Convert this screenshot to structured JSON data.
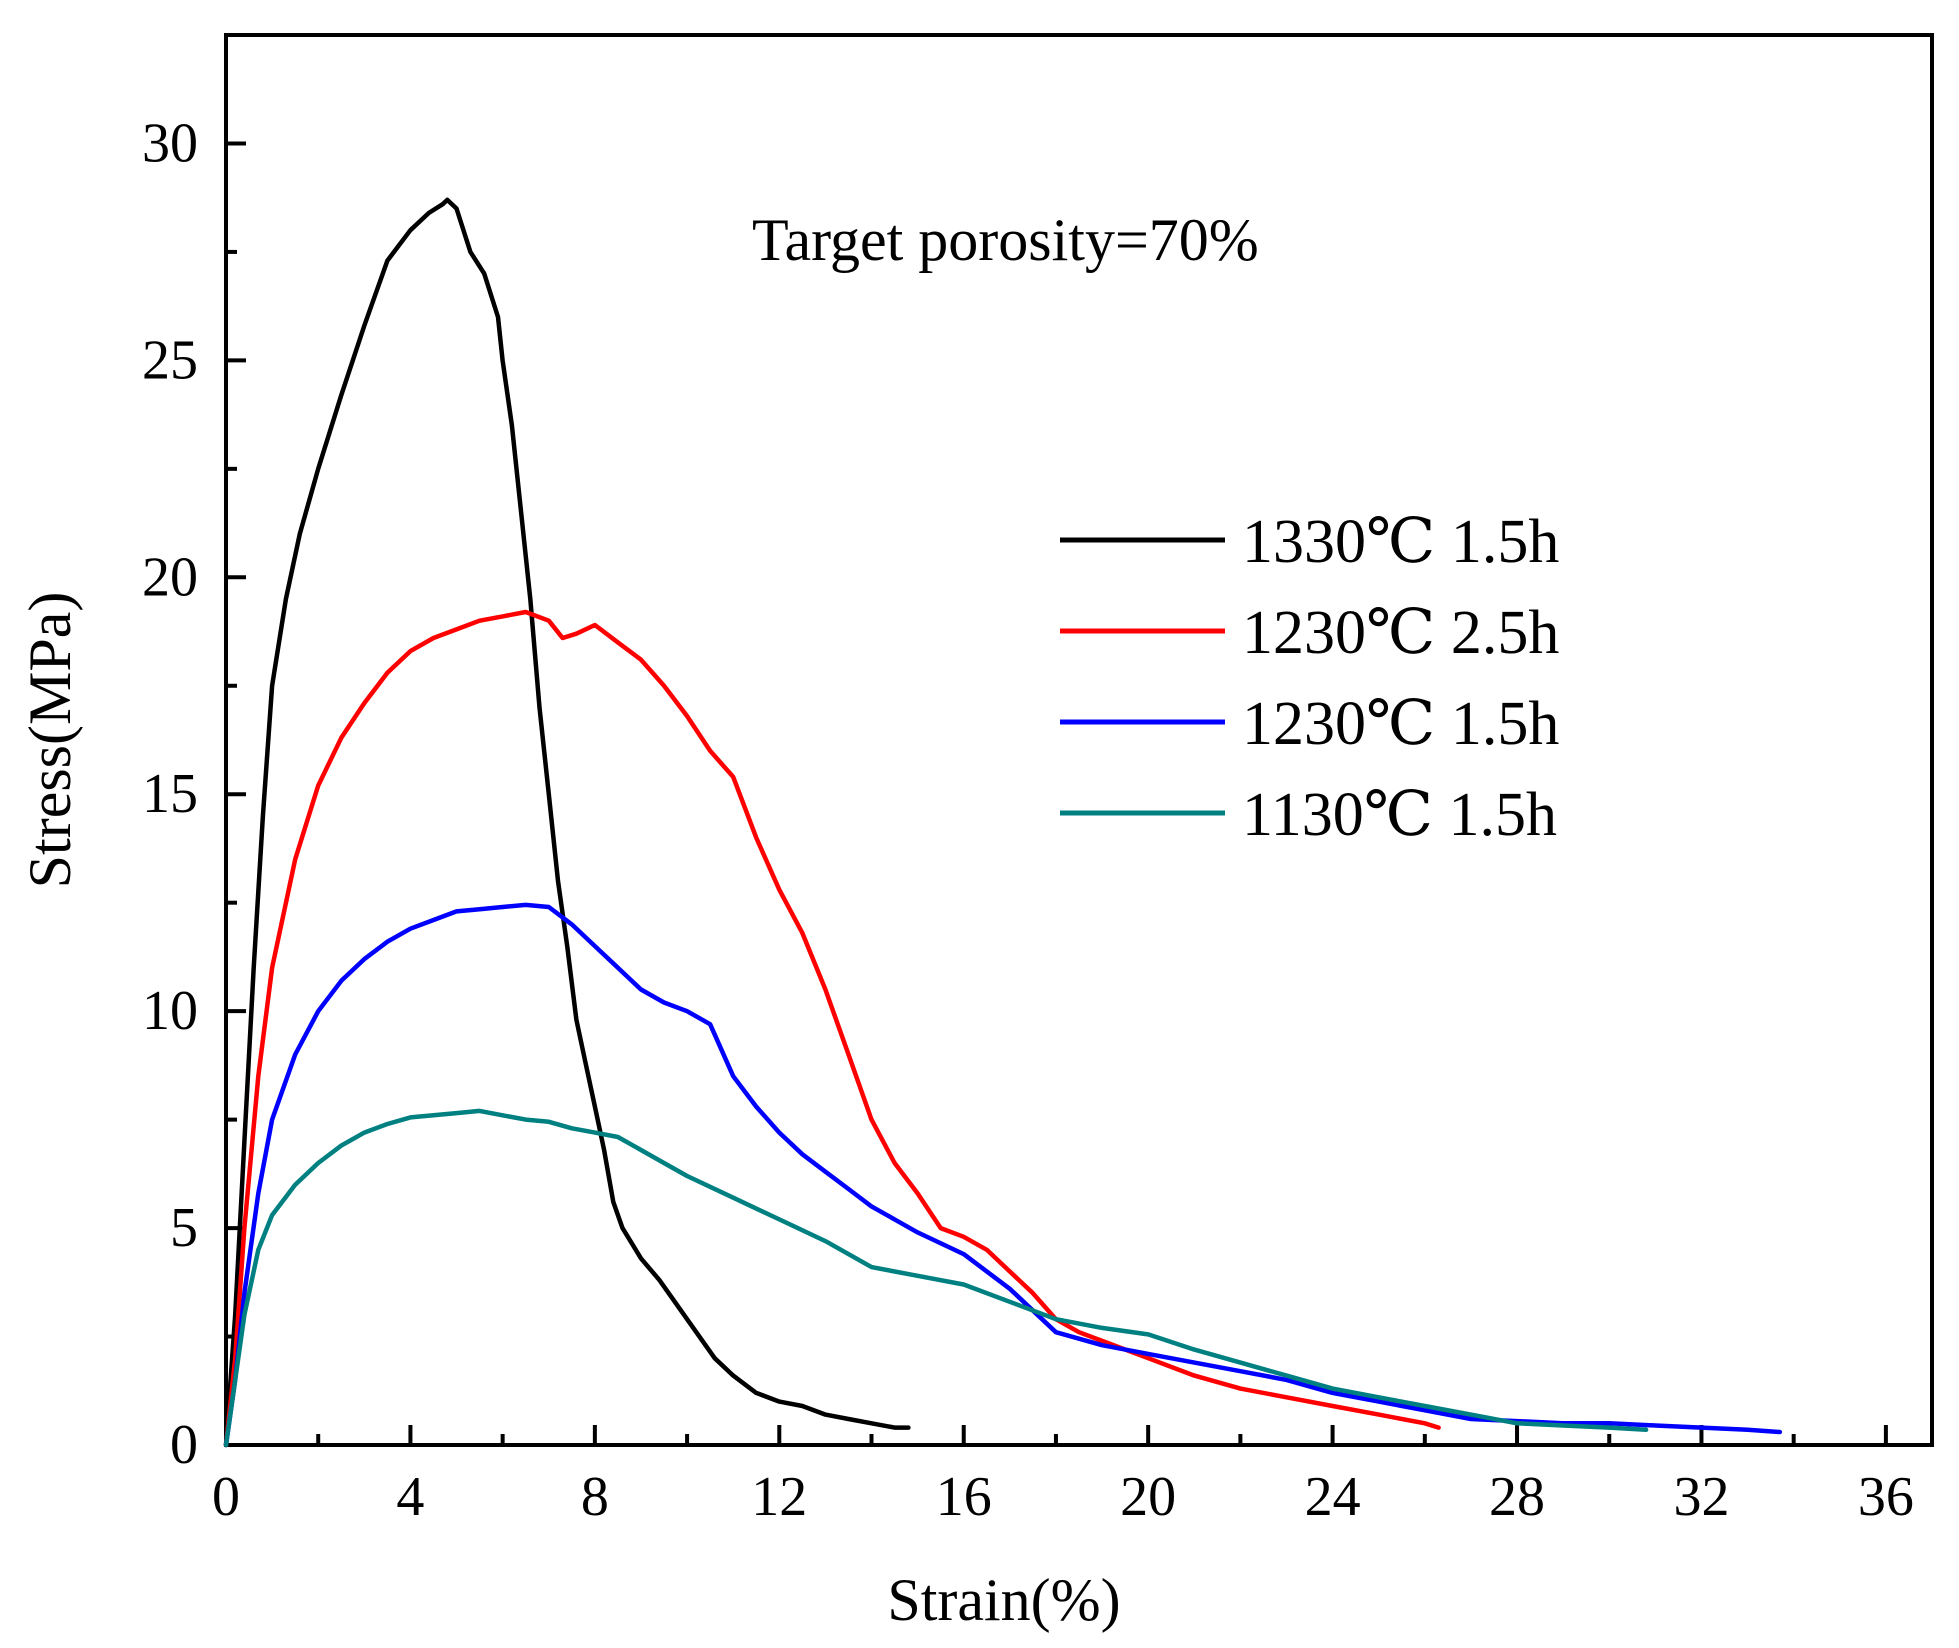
{
  "chart_data": {
    "type": "line",
    "title": "",
    "annotation": "Target porosity=70%",
    "xlabel": "Strain(%)",
    "ylabel": "Stress(MPa)",
    "xlim": [
      0,
      37
    ],
    "ylim": [
      0,
      32.5
    ],
    "xticks": [
      0,
      4,
      8,
      12,
      16,
      20,
      24,
      28,
      32,
      36
    ],
    "yticks": [
      0,
      5,
      10,
      15,
      20,
      25,
      30
    ],
    "grid": false,
    "legend_position": "right",
    "series": [
      {
        "name": "1330℃ 1.5h",
        "color": "#000000",
        "x": [
          0,
          0.2,
          0.4,
          0.6,
          0.8,
          1.0,
          1.3,
          1.6,
          2.0,
          2.5,
          3.0,
          3.5,
          4.0,
          4.4,
          4.7,
          4.8,
          5.0,
          5.3,
          5.6,
          5.9,
          6.0,
          6.2,
          6.4,
          6.6,
          6.8,
          7.0,
          7.2,
          7.4,
          7.6,
          7.8,
          8.0,
          8.2,
          8.4,
          8.6,
          9.0,
          9.4,
          9.8,
          10.2,
          10.6,
          11.0,
          11.5,
          12.0,
          12.5,
          13.0,
          13.5,
          14.0,
          14.5,
          14.8
        ],
        "y": [
          0,
          3,
          7,
          11,
          14.5,
          17.5,
          19.5,
          21,
          22.5,
          24.2,
          25.8,
          27.3,
          28.0,
          28.4,
          28.6,
          28.7,
          28.5,
          27.5,
          27.0,
          26.0,
          25.0,
          23.5,
          21.5,
          19.5,
          17.0,
          15.0,
          13.0,
          11.5,
          9.8,
          8.8,
          7.8,
          6.8,
          5.6,
          5.0,
          4.3,
          3.8,
          3.2,
          2.6,
          2.0,
          1.6,
          1.2,
          1.0,
          0.9,
          0.7,
          0.6,
          0.5,
          0.4,
          0.4
        ]
      },
      {
        "name": "1230℃ 2.5h",
        "color": "#ff0000",
        "x": [
          0,
          0.2,
          0.4,
          0.7,
          1.0,
          1.5,
          2.0,
          2.5,
          3.0,
          3.5,
          4.0,
          4.5,
          5.0,
          5.5,
          6.0,
          6.5,
          7.0,
          7.3,
          7.6,
          8.0,
          8.5,
          9.0,
          9.5,
          10.0,
          10.5,
          11.0,
          11.5,
          12.0,
          12.5,
          13.0,
          13.5,
          14.0,
          14.5,
          15.0,
          15.5,
          16.0,
          16.5,
          17.0,
          17.5,
          18.0,
          18.5,
          19.0,
          20.0,
          21.0,
          22.0,
          23.0,
          24.0,
          25.0,
          26.0,
          26.3
        ],
        "y": [
          0,
          2,
          5,
          8.5,
          11,
          13.5,
          15.2,
          16.3,
          17.1,
          17.8,
          18.3,
          18.6,
          18.8,
          19.0,
          19.1,
          19.2,
          19.0,
          18.6,
          18.7,
          18.9,
          18.5,
          18.1,
          17.5,
          16.8,
          16.0,
          15.4,
          14.0,
          12.8,
          11.8,
          10.5,
          9.0,
          7.5,
          6.5,
          5.8,
          5.0,
          4.8,
          4.5,
          4.0,
          3.5,
          2.9,
          2.6,
          2.4,
          2.0,
          1.6,
          1.3,
          1.1,
          0.9,
          0.7,
          0.5,
          0.4
        ]
      },
      {
        "name": "1230℃ 1.5h",
        "color": "#0000ff",
        "x": [
          0,
          0.2,
          0.4,
          0.7,
          1.0,
          1.5,
          2.0,
          2.5,
          3.0,
          3.5,
          4.0,
          4.5,
          5.0,
          5.5,
          6.0,
          6.5,
          7.0,
          7.5,
          8.0,
          8.5,
          9.0,
          9.5,
          10.0,
          10.5,
          11.0,
          11.5,
          12.0,
          12.5,
          13.0,
          13.5,
          14.0,
          14.5,
          15.0,
          16.0,
          17.0,
          18.0,
          19.0,
          20.0,
          21.0,
          22.0,
          23.0,
          24.0,
          25.0,
          26.0,
          27.0,
          28.0,
          29.0,
          30.0,
          31.0,
          32.0,
          33.0,
          33.7
        ],
        "y": [
          0,
          1.5,
          3.5,
          5.8,
          7.5,
          9.0,
          10.0,
          10.7,
          11.2,
          11.6,
          11.9,
          12.1,
          12.3,
          12.35,
          12.4,
          12.45,
          12.4,
          12.0,
          11.5,
          11.0,
          10.5,
          10.2,
          10.0,
          9.7,
          8.5,
          7.8,
          7.2,
          6.7,
          6.3,
          5.9,
          5.5,
          5.2,
          4.9,
          4.4,
          3.6,
          2.6,
          2.3,
          2.1,
          1.9,
          1.7,
          1.5,
          1.2,
          1.0,
          0.8,
          0.6,
          0.55,
          0.5,
          0.5,
          0.45,
          0.4,
          0.35,
          0.3
        ]
      },
      {
        "name": "1130℃ 1.5h",
        "color": "#008080",
        "x": [
          0,
          0.2,
          0.4,
          0.7,
          1.0,
          1.5,
          2.0,
          2.5,
          3.0,
          3.5,
          4.0,
          4.5,
          5.0,
          5.5,
          6.0,
          6.5,
          7.0,
          7.5,
          8.0,
          8.5,
          9.0,
          9.5,
          10.0,
          11.0,
          12.0,
          13.0,
          14.0,
          15.0,
          16.0,
          17.0,
          18.0,
          19.0,
          20.0,
          21.0,
          22.0,
          23.0,
          24.0,
          25.0,
          26.0,
          27.0,
          28.0,
          29.0,
          30.0,
          30.8
        ],
        "y": [
          0,
          1.5,
          3.0,
          4.5,
          5.3,
          6.0,
          6.5,
          6.9,
          7.2,
          7.4,
          7.55,
          7.6,
          7.65,
          7.7,
          7.6,
          7.5,
          7.45,
          7.3,
          7.2,
          7.1,
          6.8,
          6.5,
          6.2,
          5.7,
          5.2,
          4.7,
          4.1,
          3.9,
          3.7,
          3.3,
          2.9,
          2.7,
          2.55,
          2.2,
          1.9,
          1.6,
          1.3,
          1.1,
          0.9,
          0.7,
          0.5,
          0.45,
          0.4,
          0.35
        ]
      }
    ]
  }
}
